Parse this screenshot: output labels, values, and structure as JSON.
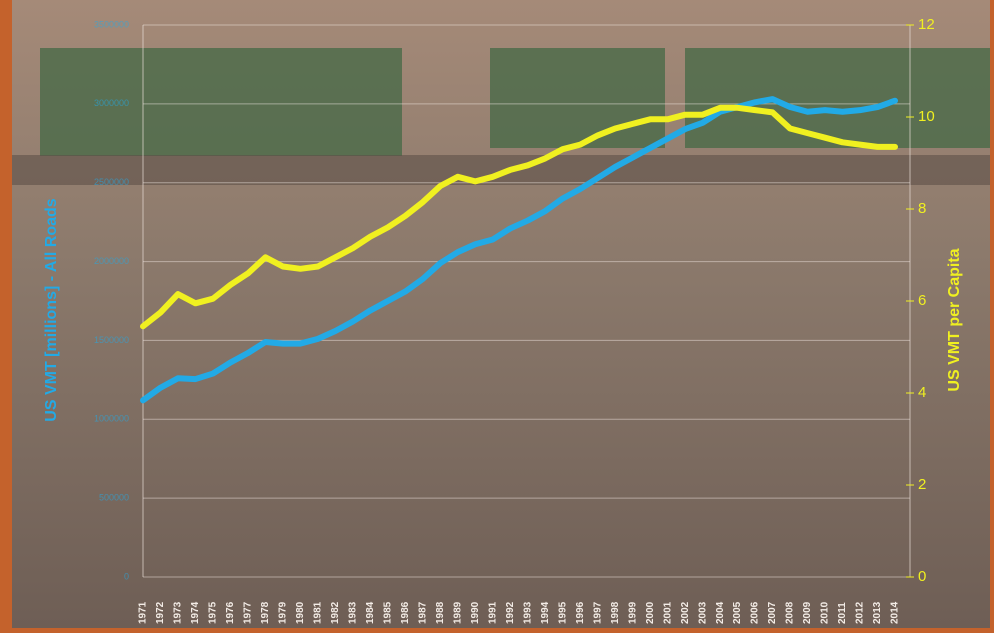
{
  "chart_data": {
    "type": "line",
    "y_label": "US VMT [millions] - All Roads",
    "y2_label": "US VMT per Capita",
    "x": [
      1971,
      1972,
      1973,
      1974,
      1975,
      1976,
      1977,
      1978,
      1979,
      1980,
      1981,
      1982,
      1983,
      1984,
      1985,
      1986,
      1987,
      1988,
      1989,
      1990,
      1991,
      1992,
      1993,
      1994,
      1995,
      1996,
      1997,
      1998,
      1999,
      2000,
      2001,
      2002,
      2003,
      2004,
      2005,
      2006,
      2007,
      2008,
      2009,
      2010,
      2011,
      2012,
      2013,
      2014
    ],
    "xlim": [
      1971,
      2014
    ],
    "ylim": [
      0,
      3500000
    ],
    "yticks": [
      0,
      500000,
      1000000,
      1500000,
      2000000,
      2500000,
      3000000,
      3500000
    ],
    "y2lim": [
      0,
      12
    ],
    "y2ticks": [
      0,
      2,
      4,
      6,
      8,
      10,
      12
    ],
    "grid": true,
    "series": [
      {
        "name": "US VMT",
        "color": "#22aae6",
        "values": [
          1120000,
          1200000,
          1260000,
          1255000,
          1290000,
          1360000,
          1420000,
          1490000,
          1480000,
          1480000,
          1510000,
          1560000,
          1620000,
          1690000,
          1750000,
          1810000,
          1890000,
          1990000,
          2060000,
          2110000,
          2140000,
          2210000,
          2260000,
          2320000,
          2400000,
          2460000,
          2530000,
          2600000,
          2660000,
          2720000,
          2780000,
          2840000,
          2880000,
          2950000,
          2980000,
          3010000,
          3030000,
          2980000,
          2950000,
          2960000,
          2950000,
          2960000,
          2980000,
          3020000
        ]
      },
      {
        "name": "US VMT per Capita",
        "color": "#f0f020",
        "axis": "y2",
        "values": [
          5.45,
          5.75,
          6.15,
          5.95,
          6.05,
          6.35,
          6.6,
          6.95,
          6.75,
          6.7,
          6.75,
          6.95,
          7.15,
          7.4,
          7.6,
          7.85,
          8.15,
          8.5,
          8.7,
          8.6,
          8.7,
          8.85,
          8.95,
          9.1,
          9.3,
          9.4,
          9.6,
          9.75,
          9.85,
          9.95,
          9.95,
          10.05,
          10.05,
          10.2,
          10.2,
          10.15,
          10.1,
          9.75,
          9.65,
          9.55,
          9.45,
          9.4,
          9.35,
          9.35
        ]
      }
    ]
  }
}
